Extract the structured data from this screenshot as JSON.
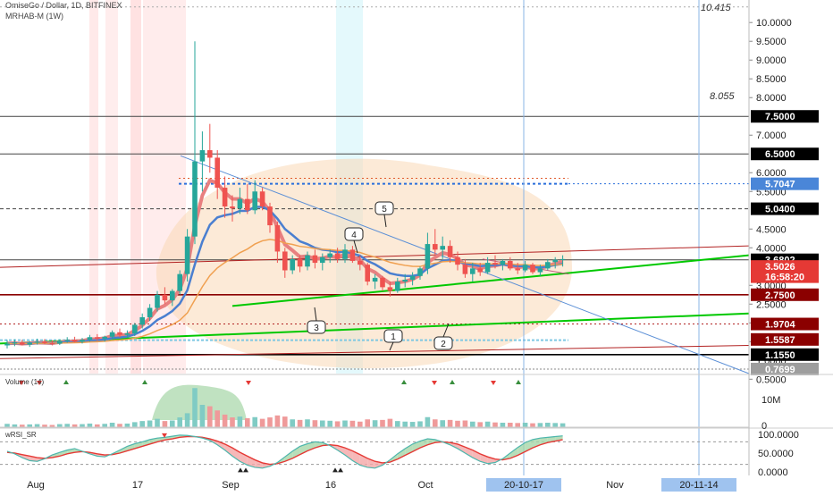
{
  "header": {
    "symbol_line": "OmiseGo / Dollar, 1D, BITFINEX",
    "indicator_line": "MRHAB-M (1W)"
  },
  "panes": {
    "volume_label": "Volume (14)",
    "rsi_label": "wRSI_SR"
  },
  "colors": {
    "up": "#26a69a",
    "down": "#ef5350",
    "green_line": "#00c800",
    "red_line": "#b22222",
    "blue_line": "#5b8fd6",
    "orange": "#f4a460"
  },
  "chart_data": {
    "type": "candlestick",
    "price_axis": {
      "ticks": [
        "10.0000",
        "9.5000",
        "9.0000",
        "8.5000",
        "8.0000",
        "7.0000",
        "6.0000",
        "5.5000",
        "4.5000",
        "4.0000",
        "3.0000",
        "2.5000",
        "2.0000",
        "1.5000",
        "1.0000",
        "0.5000"
      ],
      "range": [
        0.65,
        10.6
      ]
    },
    "price_labels": [
      {
        "text": "7.5000",
        "value": 7.5,
        "style": "black"
      },
      {
        "text": "6.5000",
        "value": 6.5,
        "style": "black"
      },
      {
        "text": "5.7047",
        "value": 5.7047,
        "style": "blue"
      },
      {
        "text": "5.0400",
        "value": 5.04,
        "style": "black"
      },
      {
        "text": "3.6802",
        "value": 3.6802,
        "style": "black"
      },
      {
        "text": "3.5026",
        "value": 3.5026,
        "style": "red"
      },
      {
        "text": "16:58:20",
        "value": 3.23,
        "style": "red"
      },
      {
        "text": "2.7500",
        "value": 2.75,
        "style": "darkred"
      },
      {
        "text": "1.9704",
        "value": 1.9704,
        "style": "darkred"
      },
      {
        "text": "1.5587",
        "value": 1.5587,
        "style": "darkred"
      },
      {
        "text": "1.1550",
        "value": 1.155,
        "style": "black"
      },
      {
        "text": "0.7699",
        "value": 0.7699,
        "style": "gray"
      }
    ],
    "level_annotations": [
      {
        "text": "10.415",
        "value": 10.415
      },
      {
        "text": "8.055",
        "value": 8.055
      }
    ],
    "x_axis": {
      "labels": [
        "Aug",
        "17",
        "Sep",
        "16",
        "Oct",
        "Nov"
      ],
      "highlight_labels": [
        "20-10-17",
        "20-11-14"
      ]
    },
    "wave_labels": [
      "1",
      "2",
      "3",
      "4",
      "5"
    ],
    "candles": [
      {
        "o": 1.4,
        "h": 1.55,
        "l": 1.32,
        "c": 1.45
      },
      {
        "o": 1.45,
        "h": 1.56,
        "l": 1.38,
        "c": 1.48
      },
      {
        "o": 1.48,
        "h": 1.55,
        "l": 1.4,
        "c": 1.42
      },
      {
        "o": 1.42,
        "h": 1.52,
        "l": 1.36,
        "c": 1.47
      },
      {
        "o": 1.47,
        "h": 1.58,
        "l": 1.42,
        "c": 1.5
      },
      {
        "o": 1.5,
        "h": 1.57,
        "l": 1.43,
        "c": 1.46
      },
      {
        "o": 1.46,
        "h": 1.54,
        "l": 1.4,
        "c": 1.45
      },
      {
        "o": 1.45,
        "h": 1.56,
        "l": 1.41,
        "c": 1.52
      },
      {
        "o": 1.52,
        "h": 1.62,
        "l": 1.47,
        "c": 1.55
      },
      {
        "o": 1.55,
        "h": 1.63,
        "l": 1.48,
        "c": 1.5
      },
      {
        "o": 1.5,
        "h": 1.6,
        "l": 1.45,
        "c": 1.55
      },
      {
        "o": 1.55,
        "h": 1.68,
        "l": 1.5,
        "c": 1.62
      },
      {
        "o": 1.62,
        "h": 1.7,
        "l": 1.52,
        "c": 1.58
      },
      {
        "o": 1.58,
        "h": 1.66,
        "l": 1.5,
        "c": 1.63
      },
      {
        "o": 1.63,
        "h": 1.8,
        "l": 1.58,
        "c": 1.75
      },
      {
        "o": 1.75,
        "h": 1.85,
        "l": 1.62,
        "c": 1.68
      },
      {
        "o": 1.68,
        "h": 1.8,
        "l": 1.6,
        "c": 1.72
      },
      {
        "o": 1.72,
        "h": 2.0,
        "l": 1.65,
        "c": 1.95
      },
      {
        "o": 1.95,
        "h": 2.25,
        "l": 1.85,
        "c": 2.15
      },
      {
        "o": 2.15,
        "h": 2.5,
        "l": 2.05,
        "c": 2.4
      },
      {
        "o": 2.4,
        "h": 2.85,
        "l": 2.3,
        "c": 2.75
      },
      {
        "o": 2.75,
        "h": 2.95,
        "l": 2.5,
        "c": 2.6
      },
      {
        "o": 2.6,
        "h": 2.9,
        "l": 2.45,
        "c": 2.85
      },
      {
        "o": 2.85,
        "h": 3.4,
        "l": 2.75,
        "c": 3.3
      },
      {
        "o": 3.3,
        "h": 4.5,
        "l": 3.1,
        "c": 4.3
      },
      {
        "o": 4.3,
        "h": 9.5,
        "l": 4.1,
        "c": 6.3
      },
      {
        "o": 6.3,
        "h": 7.1,
        "l": 5.5,
        "c": 6.6
      },
      {
        "o": 6.6,
        "h": 7.3,
        "l": 6.0,
        "c": 6.4
      },
      {
        "o": 6.4,
        "h": 6.6,
        "l": 5.3,
        "c": 5.6
      },
      {
        "o": 5.6,
        "h": 5.9,
        "l": 4.8,
        "c": 5.1
      },
      {
        "o": 5.1,
        "h": 5.4,
        "l": 4.7,
        "c": 5.05
      },
      {
        "o": 5.05,
        "h": 5.6,
        "l": 4.9,
        "c": 5.3
      },
      {
        "o": 5.3,
        "h": 5.7,
        "l": 4.9,
        "c": 5.0
      },
      {
        "o": 5.0,
        "h": 5.8,
        "l": 4.9,
        "c": 5.5
      },
      {
        "o": 5.5,
        "h": 5.6,
        "l": 5.0,
        "c": 5.1
      },
      {
        "o": 5.1,
        "h": 5.2,
        "l": 4.4,
        "c": 4.6
      },
      {
        "o": 4.6,
        "h": 4.7,
        "l": 3.6,
        "c": 3.9
      },
      {
        "o": 3.9,
        "h": 4.0,
        "l": 3.2,
        "c": 3.4
      },
      {
        "o": 3.4,
        "h": 3.8,
        "l": 3.3,
        "c": 3.7
      },
      {
        "o": 3.7,
        "h": 3.8,
        "l": 3.35,
        "c": 3.5
      },
      {
        "o": 3.5,
        "h": 3.9,
        "l": 3.4,
        "c": 3.8
      },
      {
        "o": 3.8,
        "h": 3.95,
        "l": 3.45,
        "c": 3.6
      },
      {
        "o": 3.6,
        "h": 3.85,
        "l": 3.4,
        "c": 3.75
      },
      {
        "o": 3.75,
        "h": 3.95,
        "l": 3.6,
        "c": 3.85
      },
      {
        "o": 3.85,
        "h": 4.0,
        "l": 3.6,
        "c": 3.7
      },
      {
        "o": 3.7,
        "h": 4.1,
        "l": 3.6,
        "c": 3.95
      },
      {
        "o": 3.95,
        "h": 4.05,
        "l": 3.6,
        "c": 3.65
      },
      {
        "o": 3.65,
        "h": 3.8,
        "l": 3.4,
        "c": 3.55
      },
      {
        "o": 3.55,
        "h": 3.6,
        "l": 3.0,
        "c": 3.1
      },
      {
        "o": 3.1,
        "h": 3.3,
        "l": 2.9,
        "c": 3.2
      },
      {
        "o": 3.2,
        "h": 3.25,
        "l": 2.85,
        "c": 2.95
      },
      {
        "o": 2.95,
        "h": 3.1,
        "l": 2.7,
        "c": 2.85
      },
      {
        "o": 2.85,
        "h": 3.2,
        "l": 2.8,
        "c": 3.1
      },
      {
        "o": 3.1,
        "h": 3.3,
        "l": 2.95,
        "c": 3.15
      },
      {
        "o": 3.15,
        "h": 3.35,
        "l": 3.0,
        "c": 3.25
      },
      {
        "o": 3.25,
        "h": 3.5,
        "l": 3.15,
        "c": 3.45
      },
      {
        "o": 3.45,
        "h": 4.4,
        "l": 3.3,
        "c": 4.1
      },
      {
        "o": 4.1,
        "h": 4.5,
        "l": 3.8,
        "c": 3.95
      },
      {
        "o": 3.95,
        "h": 4.3,
        "l": 3.7,
        "c": 4.05
      },
      {
        "o": 4.05,
        "h": 4.2,
        "l": 3.6,
        "c": 3.75
      },
      {
        "o": 3.75,
        "h": 3.9,
        "l": 3.4,
        "c": 3.55
      },
      {
        "o": 3.55,
        "h": 3.7,
        "l": 3.2,
        "c": 3.3
      },
      {
        "o": 3.3,
        "h": 3.6,
        "l": 3.1,
        "c": 3.45
      },
      {
        "o": 3.45,
        "h": 3.6,
        "l": 3.25,
        "c": 3.35
      },
      {
        "o": 3.35,
        "h": 3.75,
        "l": 3.3,
        "c": 3.6
      },
      {
        "o": 3.6,
        "h": 3.8,
        "l": 3.45,
        "c": 3.55
      },
      {
        "o": 3.55,
        "h": 3.7,
        "l": 3.4,
        "c": 3.65
      },
      {
        "o": 3.65,
        "h": 3.75,
        "l": 3.4,
        "c": 3.45
      },
      {
        "o": 3.45,
        "h": 3.6,
        "l": 3.3,
        "c": 3.4
      },
      {
        "o": 3.4,
        "h": 3.65,
        "l": 3.35,
        "c": 3.55
      },
      {
        "o": 3.55,
        "h": 3.6,
        "l": 3.3,
        "c": 3.35
      },
      {
        "o": 3.35,
        "h": 3.55,
        "l": 3.25,
        "c": 3.45
      },
      {
        "o": 3.45,
        "h": 3.7,
        "l": 3.4,
        "c": 3.62
      },
      {
        "o": 3.62,
        "h": 3.75,
        "l": 3.45,
        "c": 3.68
      },
      {
        "o": 3.68,
        "h": 3.8,
        "l": 3.5,
        "c": 3.7
      }
    ],
    "volume_axis": {
      "ticks": [
        "10M",
        "0"
      ]
    },
    "volume": [
      1.2,
      1.0,
      0.9,
      1.0,
      1.1,
      0.9,
      0.8,
      1.1,
      1.2,
      1.0,
      1.1,
      1.3,
      1.0,
      1.2,
      1.6,
      1.2,
      1.3,
      1.8,
      2.2,
      2.4,
      3.0,
      2.2,
      2.4,
      3.5,
      5.0,
      14.0,
      8.0,
      7.5,
      6.0,
      4.5,
      3.5,
      3.8,
      3.2,
      3.6,
      3.0,
      3.5,
      4.2,
      3.8,
      2.8,
      2.6,
      2.8,
      2.5,
      2.4,
      2.3,
      2.1,
      2.4,
      2.3,
      2.0,
      2.8,
      2.5,
      2.6,
      3.0,
      2.2,
      2.0,
      1.9,
      2.1,
      3.6,
      2.8,
      2.5,
      2.6,
      2.3,
      2.4,
      2.0,
      1.8,
      2.0,
      1.7,
      1.6,
      1.6,
      1.5,
      1.6,
      1.4,
      1.5,
      1.6,
      1.5,
      1.4
    ],
    "rsi_axis": {
      "ticks": [
        "100.0000",
        "50.0000",
        "0.0000"
      ]
    },
    "rsi_fast": [
      55,
      48,
      38,
      30,
      28,
      35,
      45,
      52,
      58,
      62,
      55,
      48,
      42,
      40,
      48,
      58,
      68,
      75,
      80,
      86,
      90,
      92,
      95,
      98,
      97,
      94,
      90,
      84,
      72,
      58,
      42,
      28,
      18,
      12,
      10,
      15,
      25,
      40,
      55,
      68,
      75,
      80,
      78,
      70,
      58,
      45,
      30,
      18,
      12,
      10,
      18,
      32,
      48,
      62,
      74,
      82,
      88,
      86,
      80,
      72,
      62,
      50,
      38,
      28,
      22,
      25,
      35,
      50,
      65,
      78,
      86,
      90,
      92,
      94,
      96
    ],
    "rsi_slow": [
      52,
      50,
      46,
      42,
      38,
      36,
      38,
      42,
      48,
      52,
      54,
      52,
      48,
      45,
      46,
      50,
      56,
      62,
      68,
      74,
      80,
      85,
      88,
      92,
      94,
      94,
      92,
      88,
      82,
      74,
      64,
      52,
      42,
      32,
      24,
      20,
      22,
      28,
      36,
      46,
      56,
      64,
      70,
      72,
      70,
      64,
      56,
      46,
      36,
      28,
      24,
      26,
      34,
      44,
      54,
      64,
      72,
      78,
      80,
      78,
      74,
      66,
      58,
      48,
      40,
      34,
      32,
      36,
      44,
      54,
      64,
      72,
      78,
      82,
      86
    ]
  }
}
